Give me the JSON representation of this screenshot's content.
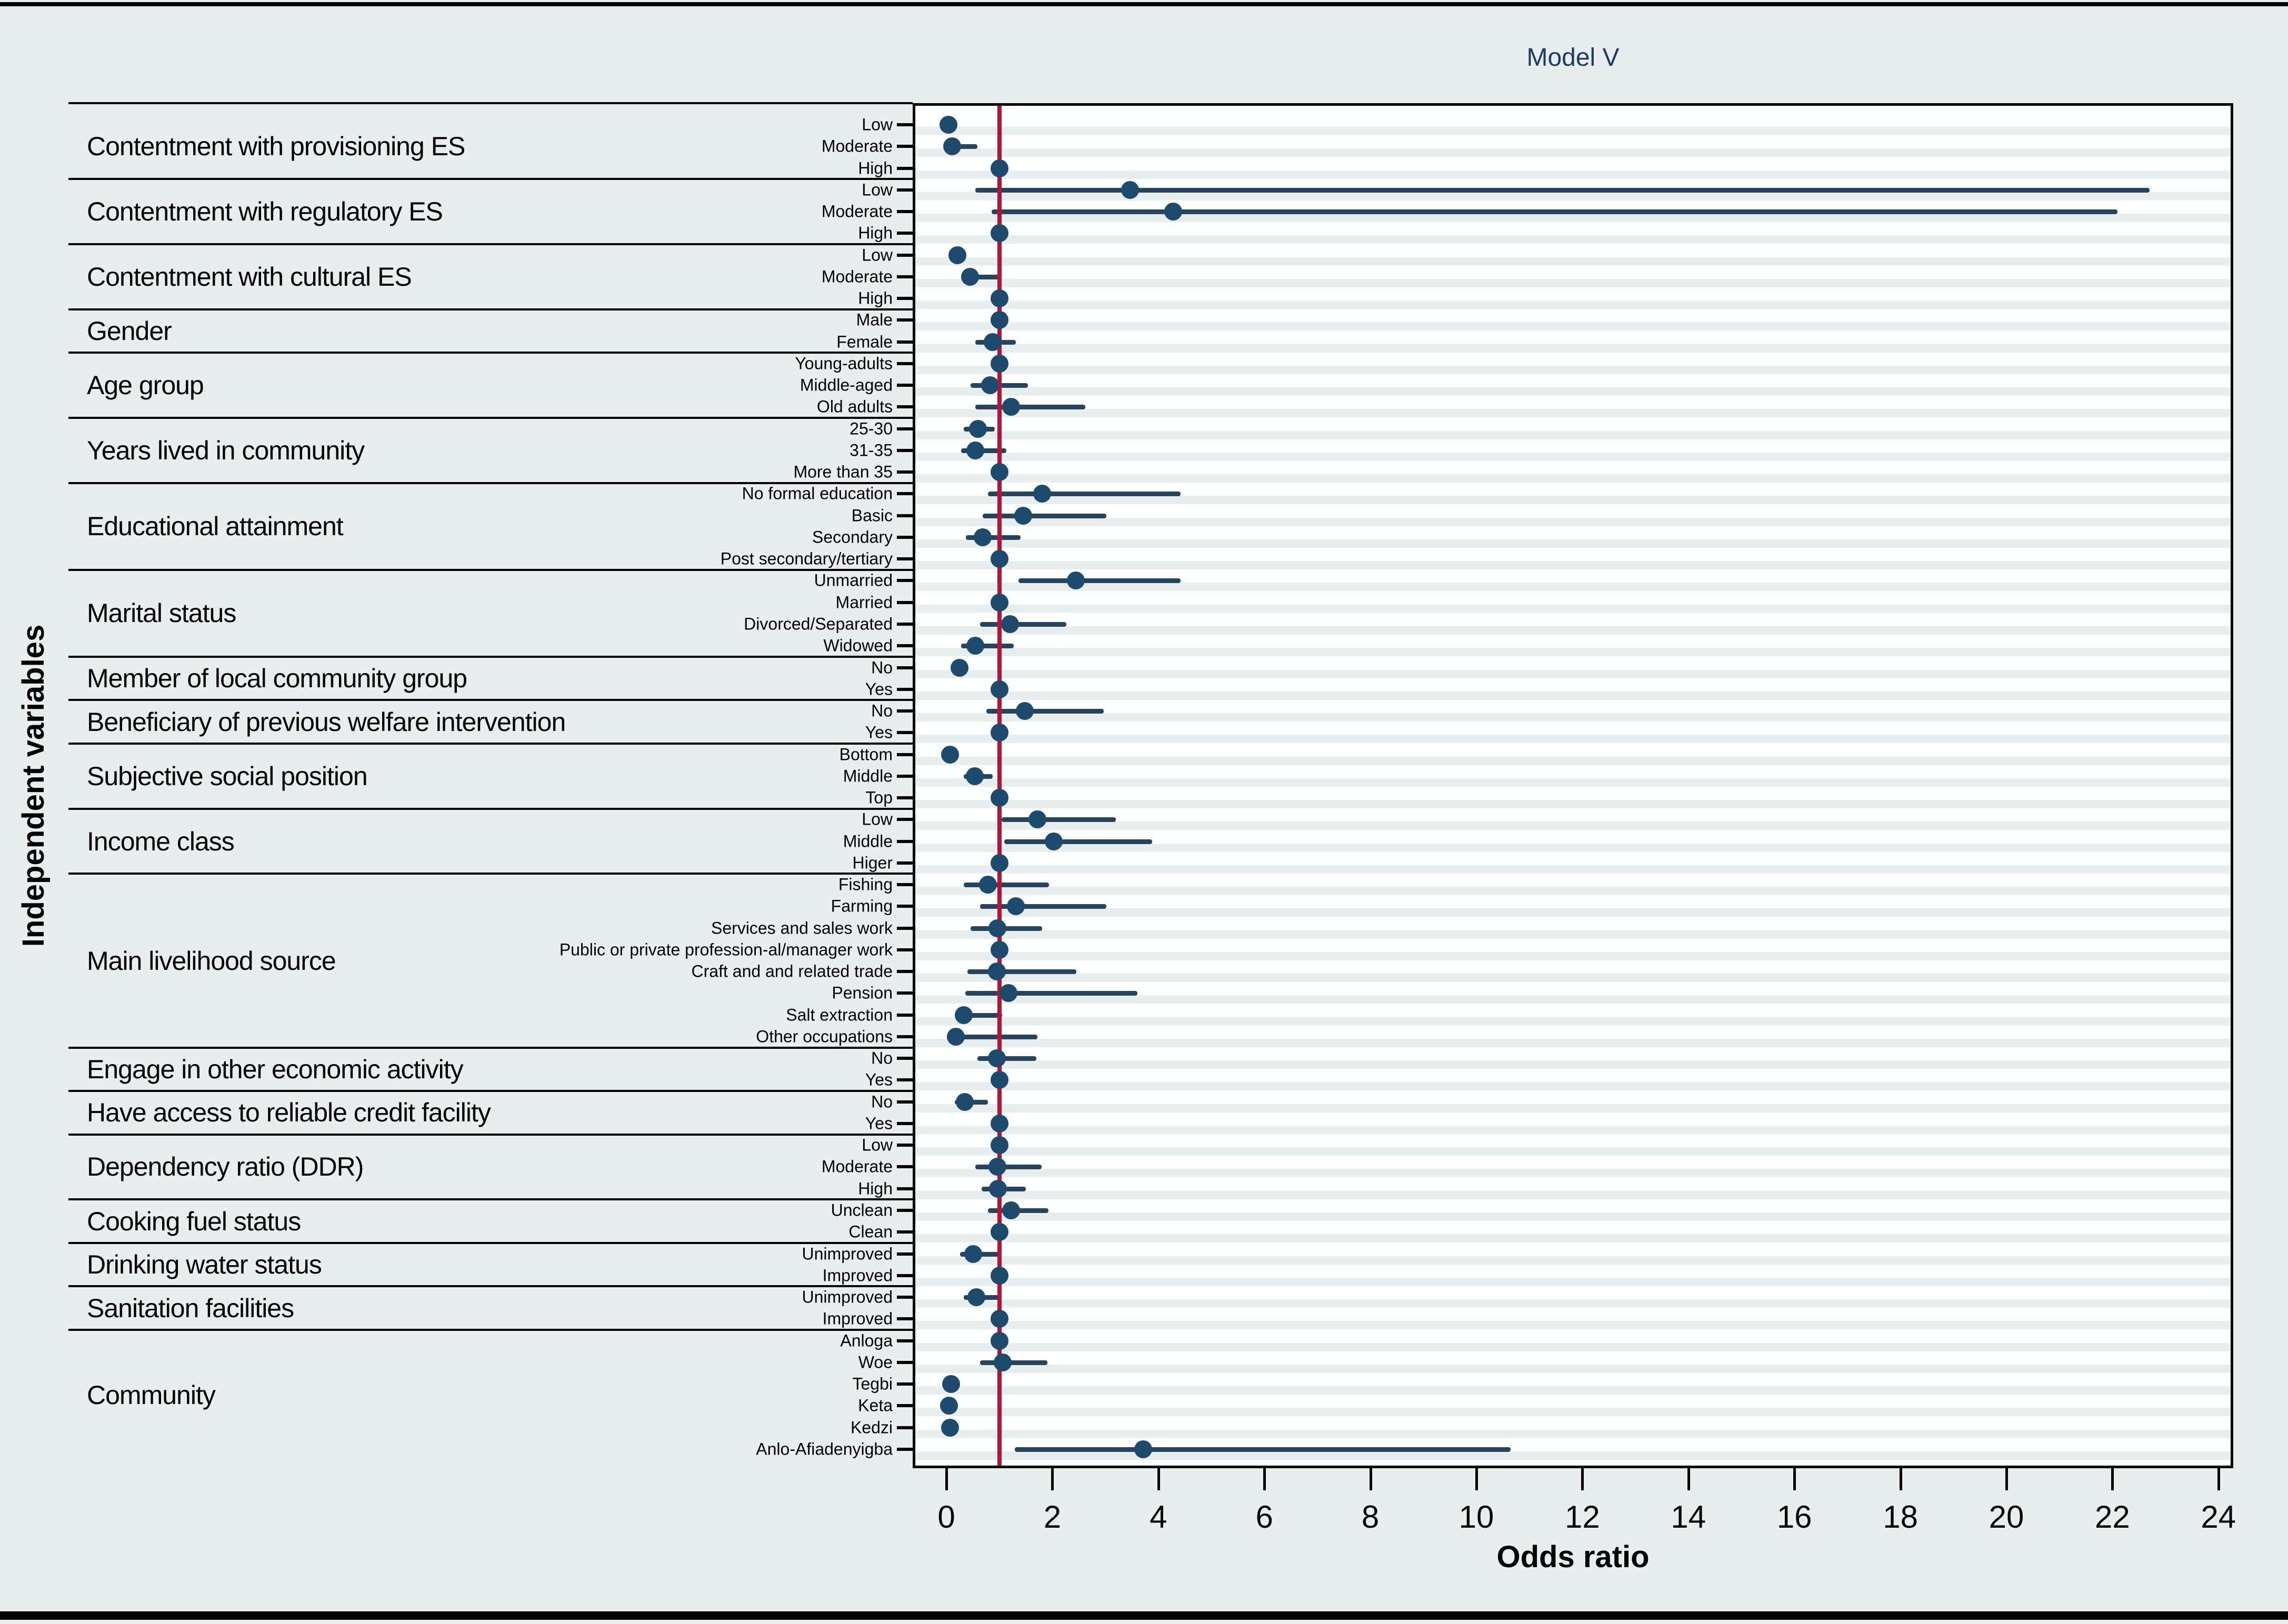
{
  "figure": {
    "title": "Model V",
    "xlabel": "Odds ratio",
    "ylabel": "Independent variables",
    "x_ticks": [
      0,
      2,
      4,
      6,
      8,
      10,
      12,
      14,
      16,
      18,
      20,
      22,
      24
    ]
  },
  "colors": {
    "dot": "#1e4a6d",
    "ci_line": "#27445c",
    "ref_line": "#b81237",
    "stripe": "#e8edf0",
    "page_bg": "#e8edf0",
    "plot_bg": "#fdfefe",
    "title_text": "#1d3d5c",
    "label_text": "#000000"
  },
  "chart_data": {
    "type": "scatter",
    "subtype": "forest-plot-odds-ratios",
    "title": "Model V",
    "xlabel": "Odds ratio",
    "ylabel": "Independent variables",
    "xlim": [
      0,
      24.3
    ],
    "x_ticks": [
      0,
      2,
      4,
      6,
      8,
      10,
      12,
      14,
      16,
      18,
      20,
      22,
      24
    ],
    "reference_line_x": 1,
    "grid": "horizontal-stripes",
    "legend_position": "none",
    "groups": [
      {
        "label": "Contentment with provisioning ES",
        "levels": [
          {
            "label": "Low",
            "or": 0.04,
            "ci_low": null,
            "ci_high": null,
            "ref": false
          },
          {
            "label": "Moderate",
            "or": 0.11,
            "ci_low": 0.11,
            "ci_high": 0.59,
            "ref": false
          },
          {
            "label": "High",
            "or": 1.0,
            "ci_low": null,
            "ci_high": null,
            "ref": true
          }
        ]
      },
      {
        "label": "Contentment with regulatory ES",
        "levels": [
          {
            "label": "Low",
            "or": 3.47,
            "ci_low": 0.55,
            "ci_high": 22.7,
            "ref": false
          },
          {
            "label": "Moderate",
            "or": 4.28,
            "ci_low": 0.85,
            "ci_high": 22.1,
            "ref": false
          },
          {
            "label": "High",
            "or": 1.0,
            "ci_low": null,
            "ci_high": null,
            "ref": true
          }
        ]
      },
      {
        "label": "Contentment with cultural ES",
        "levels": [
          {
            "label": "Low",
            "or": 0.21,
            "ci_low": null,
            "ci_high": null,
            "ref": false
          },
          {
            "label": "Moderate",
            "or": 0.45,
            "ci_low": 0.45,
            "ci_high": 1.0,
            "ref": false
          },
          {
            "label": "High",
            "or": 1.0,
            "ci_low": null,
            "ci_high": null,
            "ref": true
          }
        ]
      },
      {
        "label": "Gender",
        "levels": [
          {
            "label": "Male",
            "or": 1.0,
            "ci_low": null,
            "ci_high": null,
            "ref": true
          },
          {
            "label": "Female",
            "or": 0.87,
            "ci_low": 0.55,
            "ci_high": 1.31,
            "ref": false
          }
        ]
      },
      {
        "label": "Age group",
        "levels": [
          {
            "label": "Young-adults",
            "or": 1.0,
            "ci_low": null,
            "ci_high": null,
            "ref": true
          },
          {
            "label": "Middle-aged",
            "or": 0.82,
            "ci_low": 0.46,
            "ci_high": 1.54,
            "ref": false
          },
          {
            "label": "Old adults",
            "or": 1.22,
            "ci_low": 0.55,
            "ci_high": 2.62,
            "ref": false
          }
        ]
      },
      {
        "label": "Years lived in community",
        "levels": [
          {
            "label": "25-30",
            "or": 0.6,
            "ci_low": 0.33,
            "ci_high": 0.91,
            "ref": false
          },
          {
            "label": "31-35",
            "or": 0.55,
            "ci_low": 0.28,
            "ci_high": 1.13,
            "ref": false
          },
          {
            "label": "More than 35",
            "or": 1.0,
            "ci_low": null,
            "ci_high": null,
            "ref": true
          }
        ]
      },
      {
        "label": "Educational attainment",
        "levels": [
          {
            "label": "No formal education",
            "or": 1.81,
            "ci_low": 0.78,
            "ci_high": 4.42,
            "ref": false
          },
          {
            "label": "Basic",
            "or": 1.45,
            "ci_low": 0.69,
            "ci_high": 3.02,
            "ref": false
          },
          {
            "label": "Secondary",
            "or": 0.69,
            "ci_low": 0.37,
            "ci_high": 1.4,
            "ref": false
          },
          {
            "label": "Post secondary/tertiary",
            "or": 1.0,
            "ci_low": null,
            "ci_high": null,
            "ref": true
          }
        ]
      },
      {
        "label": "Marital status",
        "levels": [
          {
            "label": "Unmarried",
            "or": 2.44,
            "ci_low": 1.36,
            "ci_high": 4.42,
            "ref": false
          },
          {
            "label": "Married",
            "or": 1.0,
            "ci_low": null,
            "ci_high": null,
            "ref": true
          },
          {
            "label": "Divorced/Separated",
            "or": 1.2,
            "ci_low": 0.64,
            "ci_high": 2.26,
            "ref": false
          },
          {
            "label": "Widowed",
            "or": 0.55,
            "ci_low": 0.28,
            "ci_high": 1.27,
            "ref": false
          }
        ]
      },
      {
        "label": "Member of local community group",
        "levels": [
          {
            "label": "No",
            "or": 0.25,
            "ci_low": null,
            "ci_high": null,
            "ref": false
          },
          {
            "label": "Yes",
            "or": 1.0,
            "ci_low": null,
            "ci_high": null,
            "ref": true
          }
        ]
      },
      {
        "label": "Beneficiary of previous welfare intervention",
        "levels": [
          {
            "label": "No",
            "or": 1.48,
            "ci_low": 0.75,
            "ci_high": 2.97,
            "ref": false
          },
          {
            "label": "Yes",
            "or": 1.0,
            "ci_low": null,
            "ci_high": null,
            "ref": true
          }
        ]
      },
      {
        "label": "Subjective social position",
        "levels": [
          {
            "label": "Bottom",
            "or": 0.07,
            "ci_low": null,
            "ci_high": null,
            "ref": false
          },
          {
            "label": "Middle",
            "or": 0.54,
            "ci_low": 0.33,
            "ci_high": 0.87,
            "ref": false
          },
          {
            "label": "Top",
            "or": 1.0,
            "ci_low": null,
            "ci_high": null,
            "ref": true
          }
        ]
      },
      {
        "label": "Income class",
        "levels": [
          {
            "label": "Low",
            "or": 1.72,
            "ci_low": 1.04,
            "ci_high": 3.2,
            "ref": false
          },
          {
            "label": "Middle",
            "or": 2.03,
            "ci_low": 1.09,
            "ci_high": 3.88,
            "ref": false
          },
          {
            "label": "Higer",
            "or": 1.0,
            "ci_low": null,
            "ci_high": null,
            "ref": true
          }
        ]
      },
      {
        "label": "Main livelihood source",
        "levels": [
          {
            "label": "Fishing",
            "or": 0.78,
            "ci_low": 0.33,
            "ci_high": 1.94,
            "ref": false
          },
          {
            "label": "Farming",
            "or": 1.31,
            "ci_low": 0.64,
            "ci_high": 3.02,
            "ref": false
          },
          {
            "label": "Services and sales work",
            "or": 0.96,
            "ci_low": 0.46,
            "ci_high": 1.81,
            "ref": false
          },
          {
            "label": "Public or private profession-al/manager work",
            "or": 1.0,
            "ci_low": null,
            "ci_high": null,
            "ref": true
          },
          {
            "label": "Craft and and related trade",
            "or": 0.95,
            "ci_low": 0.4,
            "ci_high": 2.45,
            "ref": false
          },
          {
            "label": "Pension",
            "or": 1.17,
            "ci_low": 0.36,
            "ci_high": 3.6,
            "ref": false
          },
          {
            "label": "Salt extraction",
            "or": 0.33,
            "ci_low": 0.33,
            "ci_high": 1.05,
            "ref": false
          },
          {
            "label": "Other occupations",
            "or": 0.18,
            "ci_low": 0.03,
            "ci_high": 1.72,
            "ref": false
          }
        ]
      },
      {
        "label": "Engage in other economic activity",
        "levels": [
          {
            "label": "No",
            "or": 0.95,
            "ci_low": 0.59,
            "ci_high": 1.7,
            "ref": false
          },
          {
            "label": "Yes",
            "or": 1.0,
            "ci_low": null,
            "ci_high": null,
            "ref": true
          }
        ]
      },
      {
        "label": "Have access to reliable credit facility",
        "levels": [
          {
            "label": "No",
            "or": 0.35,
            "ci_low": 0.16,
            "ci_high": 0.78,
            "ref": false
          },
          {
            "label": "Yes",
            "or": 1.0,
            "ci_low": null,
            "ci_high": null,
            "ref": true
          }
        ]
      },
      {
        "label": "Dependency ratio (DDR)",
        "levels": [
          {
            "label": "Low",
            "or": 1.0,
            "ci_low": null,
            "ci_high": null,
            "ref": true
          },
          {
            "label": "Moderate",
            "or": 0.96,
            "ci_low": 0.55,
            "ci_high": 1.8,
            "ref": false
          },
          {
            "label": "High",
            "or": 0.97,
            "ci_low": 0.67,
            "ci_high": 1.5,
            "ref": false
          }
        ]
      },
      {
        "label": "Cooking fuel status",
        "levels": [
          {
            "label": "Unclean",
            "or": 1.22,
            "ci_low": 0.78,
            "ci_high": 1.93,
            "ref": false
          },
          {
            "label": "Clean",
            "or": 1.0,
            "ci_low": null,
            "ci_high": null,
            "ref": true
          }
        ]
      },
      {
        "label": "Drinking water status",
        "levels": [
          {
            "label": "Unimproved",
            "or": 0.51,
            "ci_low": 0.26,
            "ci_high": 1.0,
            "ref": false
          },
          {
            "label": "Improved",
            "or": 1.0,
            "ci_low": null,
            "ci_high": null,
            "ref": true
          }
        ]
      },
      {
        "label": "Sanitation facilities",
        "levels": [
          {
            "label": "Unimproved",
            "or": 0.57,
            "ci_low": 0.33,
            "ci_high": 1.0,
            "ref": false
          },
          {
            "label": "Improved",
            "or": 1.0,
            "ci_low": null,
            "ci_high": null,
            "ref": true
          }
        ]
      },
      {
        "label": "Community",
        "levels": [
          {
            "label": "Anloga",
            "or": 1.0,
            "ci_low": null,
            "ci_high": null,
            "ref": true
          },
          {
            "label": "Woe",
            "or": 1.06,
            "ci_low": 0.64,
            "ci_high": 1.91,
            "ref": false
          },
          {
            "label": "Tegbi",
            "or": 0.09,
            "ci_low": null,
            "ci_high": null,
            "ref": false
          },
          {
            "label": "Keta",
            "or": 0.05,
            "ci_low": null,
            "ci_high": null,
            "ref": false
          },
          {
            "label": "Kedzi",
            "or": 0.07,
            "ci_low": null,
            "ci_high": null,
            "ref": false
          },
          {
            "label": "Anlo-Afiadenyigba",
            "or": 3.71,
            "ci_low": 1.29,
            "ci_high": 10.65,
            "ref": false
          }
        ]
      }
    ]
  }
}
